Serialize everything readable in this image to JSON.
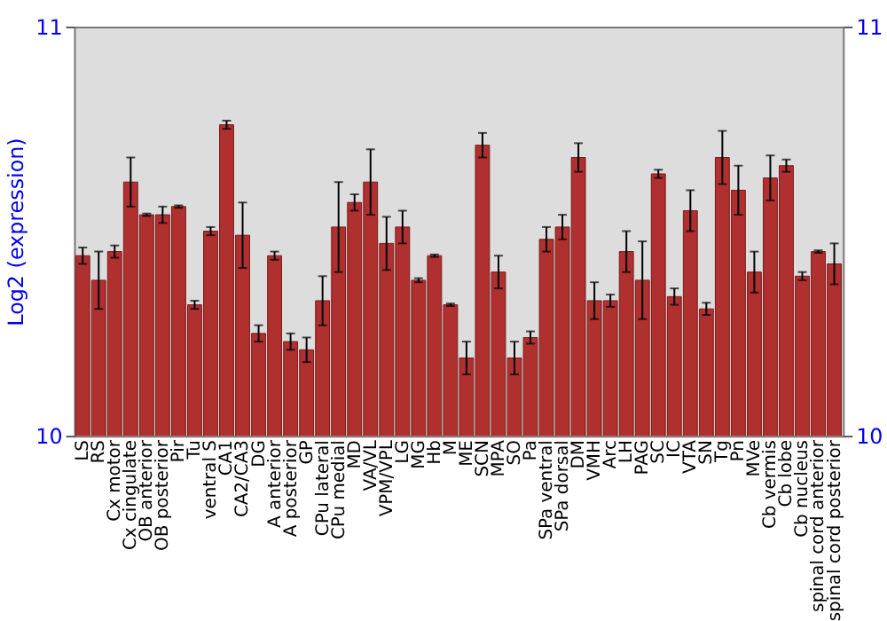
{
  "chart_data": {
    "type": "bar",
    "ylabel": "Log2 (expression)",
    "categories": [
      "LS",
      "RS",
      "Cx motor",
      "Cx cingulate",
      "OB anterior",
      "OB posterior",
      "Pir",
      "Tu",
      "ventral S",
      "CA1",
      "CA2/CA3",
      "DG",
      "A anterior",
      "A posterior",
      "GP",
      "CPu lateral",
      "CPu medial",
      "MD",
      "VA/VL",
      "VPM/VPL",
      "LG",
      "MG",
      "Hb",
      "M",
      "ME",
      "SCN",
      "MPA",
      "SO",
      "Pa",
      "SPa ventral",
      "SPa dorsal",
      "DM",
      "VMH",
      "Arc",
      "LH",
      "PAG",
      "SC",
      "IC",
      "VTA",
      "SN",
      "Tg",
      "Pn",
      "MVe",
      "Cb vermis",
      "Cb lobe",
      "Cb nucleus",
      "spinal cord anterior",
      "spinal cord posterior"
    ],
    "values": [
      10.44,
      10.38,
      10.45,
      10.62,
      10.54,
      10.54,
      10.56,
      10.32,
      10.5,
      10.76,
      10.49,
      10.25,
      10.44,
      10.23,
      10.21,
      10.33,
      10.51,
      10.57,
      10.62,
      10.47,
      10.51,
      10.38,
      10.44,
      10.32,
      10.19,
      10.71,
      10.4,
      10.19,
      10.24,
      10.48,
      10.51,
      10.68,
      10.33,
      10.33,
      10.45,
      10.38,
      10.64,
      10.34,
      10.55,
      10.31,
      10.68,
      10.6,
      10.4,
      10.63,
      10.66,
      10.39,
      10.45,
      10.42
    ],
    "errors": [
      0.02,
      0.07,
      0.015,
      0.06,
      0.003,
      0.02,
      0.003,
      0.01,
      0.01,
      0.01,
      0.08,
      0.02,
      0.01,
      0.02,
      0.03,
      0.06,
      0.11,
      0.02,
      0.08,
      0.065,
      0.04,
      0.005,
      0.003,
      0.003,
      0.04,
      0.03,
      0.04,
      0.04,
      0.015,
      0.03,
      0.03,
      0.035,
      0.045,
      0.015,
      0.05,
      0.095,
      0.01,
      0.02,
      0.05,
      0.015,
      0.065,
      0.06,
      0.05,
      0.055,
      0.015,
      0.01,
      0.003,
      0.05
    ],
    "color": "#b03030",
    "ylim": [
      10,
      11
    ],
    "yticks": [
      10,
      11
    ],
    "y2lim": [
      10,
      11
    ],
    "y2ticks": [
      10,
      11
    ],
    "grid": false
  }
}
